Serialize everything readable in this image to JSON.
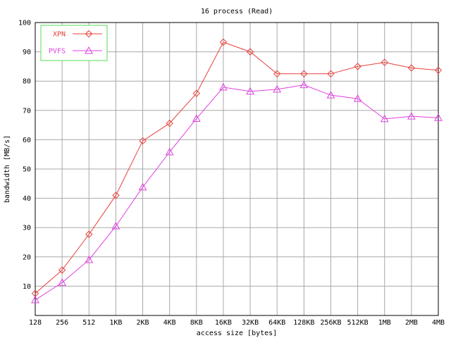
{
  "chart_data": {
    "type": "line",
    "title": "16 process (Read)",
    "xlabel": "access size [bytes]",
    "ylabel": "bandwidth [MB/s]",
    "categories": [
      "128",
      "256",
      "512",
      "1KB",
      "2KB",
      "4KB",
      "8KB",
      "16KB",
      "32KB",
      "64KB",
      "128KB",
      "256KB",
      "512KB",
      "1MB",
      "2MB",
      "4MB"
    ],
    "ylim": [
      0,
      100
    ],
    "yticks": [
      "10",
      "20",
      "30",
      "40",
      "50",
      "60",
      "70",
      "80",
      "90",
      "100"
    ],
    "grid": true,
    "legend_position": "top-left",
    "series": [
      {
        "name": "XPN",
        "color": "#e8403a",
        "marker": "diamond",
        "values": [
          7.5,
          15.5,
          27.7,
          41.0,
          59.6,
          65.6,
          75.8,
          93.3,
          90.0,
          82.5,
          82.5,
          82.5,
          85.0,
          86.4,
          84.5,
          83.7
        ]
      },
      {
        "name": "PVFS",
        "color": "#e040e0",
        "marker": "triangle",
        "values": [
          5.3,
          11.2,
          19.0,
          30.5,
          43.8,
          55.8,
          67.2,
          77.9,
          76.5,
          77.2,
          78.7,
          75.2,
          74.0,
          67.1,
          68.0,
          67.5
        ]
      }
    ]
  }
}
